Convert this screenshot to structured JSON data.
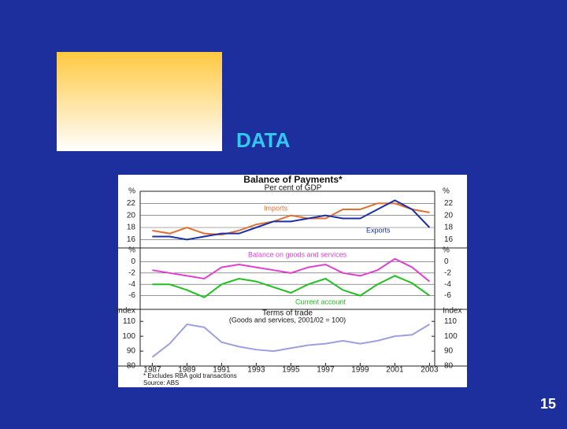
{
  "slide": {
    "heading": "DATA",
    "page_number": "15"
  },
  "figure": {
    "title": "Balance of Payments*",
    "subtitle": "Per cent of GDP",
    "notes": [
      "* Excludes RBA gold transactions",
      "Source: ABS"
    ]
  },
  "chart_data": [
    {
      "type": "line",
      "y_label": "%",
      "x": [
        1987,
        1988,
        1989,
        1990,
        1991,
        1992,
        1993,
        1994,
        1995,
        1996,
        1997,
        1998,
        1999,
        2000,
        2001,
        2002,
        2003
      ],
      "xlim": [
        1986.3,
        2003.3
      ],
      "ylim": [
        15,
        24
      ],
      "yticks": [
        16,
        18,
        20,
        22
      ],
      "grid": true,
      "series": [
        {
          "name": "Imports",
          "color": "#e07030",
          "values": [
            17.5,
            17,
            18,
            17,
            16.8,
            17.5,
            18.5,
            19,
            20,
            19.5,
            19.5,
            21,
            21,
            22,
            22,
            21,
            20.5
          ]
        },
        {
          "name": "Exports",
          "color": "#1a2fa8",
          "values": [
            16.5,
            16.5,
            16,
            16.5,
            17,
            17,
            18,
            19,
            19,
            19.5,
            20,
            19.5,
            19.5,
            21,
            22.5,
            21,
            18
          ]
        }
      ]
    },
    {
      "type": "line",
      "y_label": "%",
      "x": [
        1987,
        1988,
        1989,
        1990,
        1991,
        1992,
        1993,
        1994,
        1995,
        1996,
        1997,
        1998,
        1999,
        2000,
        2001,
        2002,
        2003
      ],
      "xlim": [
        1986.3,
        2003.3
      ],
      "ylim": [
        -8,
        2
      ],
      "yticks": [
        0,
        -2,
        -4,
        -6
      ],
      "grid": true,
      "series": [
        {
          "name": "Balance on goods and services",
          "color": "#e040d0",
          "values": [
            -1.5,
            -2,
            -2.5,
            -3,
            -1,
            -0.5,
            -1,
            -1.5,
            -2,
            -1,
            -0.5,
            -2,
            -2.5,
            -1.5,
            0.5,
            -1,
            -3.5
          ]
        },
        {
          "name": "Current account",
          "color": "#20c020",
          "values": [
            -4,
            -4,
            -5,
            -6.3,
            -4,
            -3,
            -3.5,
            -4.5,
            -5.5,
            -4,
            -3,
            -5,
            -6,
            -4,
            -2.5,
            -3.8,
            -6
          ]
        }
      ]
    },
    {
      "type": "line",
      "title": "Terms of trade",
      "subtitle": "(Goods and services, 2001/02 = 100)",
      "y_label": "Index",
      "x": [
        1987,
        1988,
        1989,
        1990,
        1991,
        1992,
        1993,
        1994,
        1995,
        1996,
        1997,
        1998,
        1999,
        2000,
        2001,
        2002,
        2003
      ],
      "xlim": [
        1986.3,
        2003.3
      ],
      "xticks": [
        1987,
        1989,
        1991,
        1993,
        1995,
        1997,
        1999,
        2001,
        2003
      ],
      "ylim": [
        80,
        117
      ],
      "yticks": [
        80,
        90,
        100,
        110
      ],
      "grid": false,
      "series": [
        {
          "name": "Terms of trade",
          "color": "#9aa0e0",
          "values": [
            86,
            95,
            108,
            106,
            96,
            93,
            91,
            90,
            92,
            94,
            95,
            97,
            95,
            97,
            100,
            101,
            108
          ]
        }
      ]
    }
  ]
}
